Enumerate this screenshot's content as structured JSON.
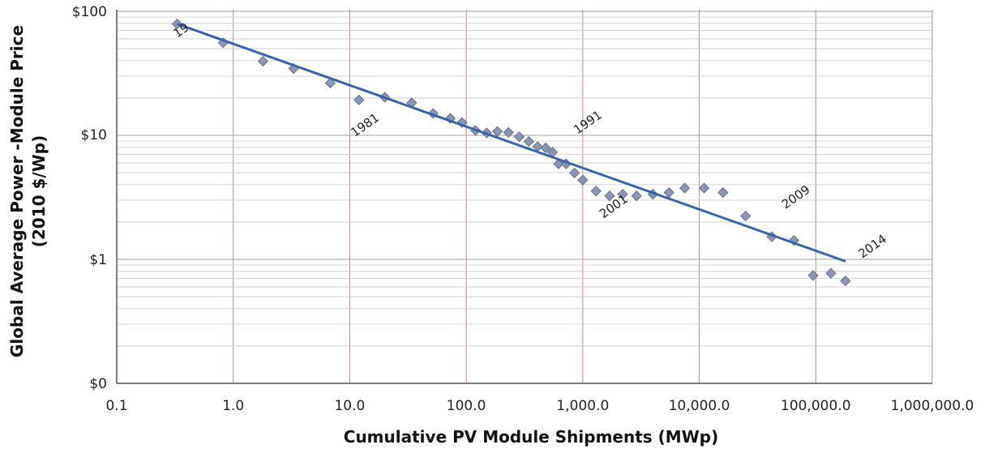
{
  "chart_data": {
    "type": "scatter",
    "xscale": "log",
    "yscale": "log",
    "xlabel": "Cumulative PV Module Shipments (MWp)",
    "ylabel_line1": "Global  Average Power -Module Price",
    "ylabel_line2": "(2010 $/Wp)",
    "xlim": [
      0.1,
      1000000
    ],
    "x_ticks": [
      0.1,
      1,
      10,
      100,
      1000,
      10000,
      100000,
      1000000
    ],
    "x_tick_labels": [
      "0.1",
      "1.0",
      "10.0",
      "100.0",
      "1,000.0",
      "10,000.0",
      "100,000.0",
      "1,000,000.0"
    ],
    "y_ticks": [
      "$0",
      "$1",
      "$10",
      "$100"
    ],
    "grid": true,
    "marker_color": "#8c96b4",
    "line_color": "#3a64a8",
    "points": [
      [
        0.33,
        78
      ],
      [
        0.82,
        55
      ],
      [
        1.8,
        39
      ],
      [
        3.3,
        34
      ],
      [
        6.8,
        26
      ],
      [
        12,
        19
      ],
      [
        20,
        20
      ],
      [
        34,
        18
      ],
      [
        52,
        14.8
      ],
      [
        73,
        13.5
      ],
      [
        92,
        12.5
      ],
      [
        120,
        10.8
      ],
      [
        150,
        10.3
      ],
      [
        185,
        10.6
      ],
      [
        230,
        10.4
      ],
      [
        285,
        9.6
      ],
      [
        345,
        8.8
      ],
      [
        410,
        8.0
      ],
      [
        480,
        7.8
      ],
      [
        550,
        7.2
      ],
      [
        620,
        5.8
      ],
      [
        720,
        5.8
      ],
      [
        850,
        4.9
      ],
      [
        1000,
        4.3
      ],
      [
        1300,
        3.5
      ],
      [
        1700,
        3.2
      ],
      [
        2200,
        3.3
      ],
      [
        2900,
        3.2
      ],
      [
        4000,
        3.3
      ],
      [
        5500,
        3.4
      ],
      [
        7500,
        3.7
      ],
      [
        11000,
        3.7
      ],
      [
        16000,
        3.4
      ],
      [
        25000,
        2.2
      ],
      [
        42000,
        1.5
      ],
      [
        65000,
        1.4
      ],
      [
        95000,
        0.73
      ],
      [
        135000,
        0.76
      ],
      [
        180000,
        0.66
      ]
    ],
    "trendline": {
      "x": [
        0.33,
        180000
      ],
      "y": [
        78,
        0.95
      ]
    },
    "annotations": [
      {
        "label": "19",
        "x": 0.33,
        "y": 60
      },
      {
        "label": "1981",
        "x": 11,
        "y": 9.5
      },
      {
        "label": "1991",
        "x": 900,
        "y": 10
      },
      {
        "label": "2001",
        "x": 1500,
        "y": 2.1
      },
      {
        "label": "2009",
        "x": 55000,
        "y": 2.5
      },
      {
        "label": "2014",
        "x": 250000,
        "y": 1.0
      }
    ]
  }
}
